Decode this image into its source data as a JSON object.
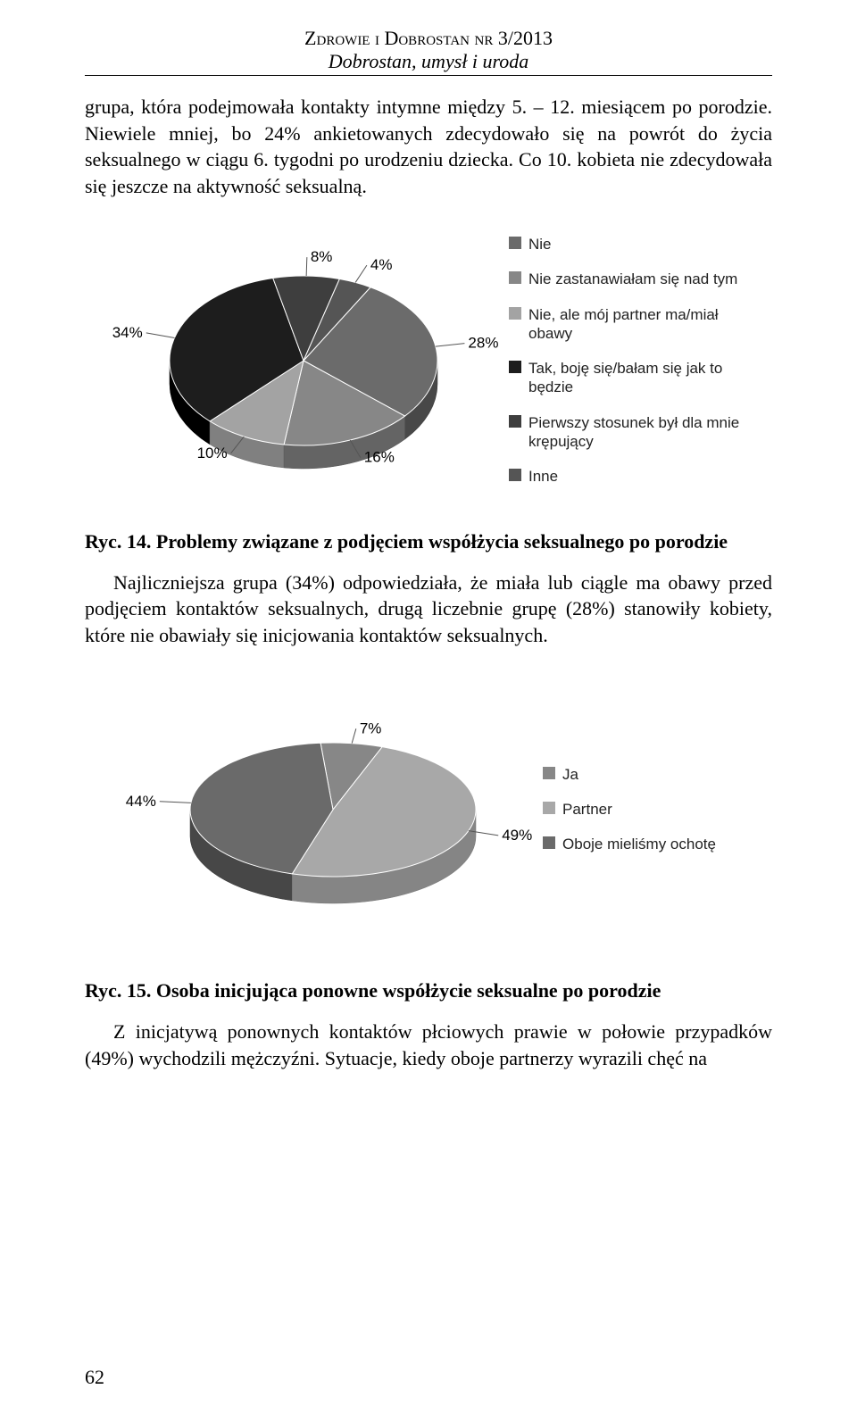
{
  "header": {
    "line1": "Zdrowie i Dobrostan nr 3/2013",
    "line2": "Dobrostan, umysł i uroda"
  },
  "para1": "grupa, która podejmowała kontakty intymne między 5. – 12. miesiącem po porodzie. Niewiele mniej, bo 24% ankietowanych zdecydowało się na powrót do życia seksualnego w ciągu 6. tygodni po urodzeniu dziecka. Co 10. kobieta nie zdecydowała się jeszcze na aktywność seksualną.",
  "chart1": {
    "type": "pie",
    "background_color": "#ffffff",
    "label_fontsize": 17,
    "label_color": "#222222",
    "slices": [
      {
        "label": "Nie",
        "value": 28,
        "color": "#6b6b6b",
        "text": "28%",
        "text_color": "#ffffff"
      },
      {
        "label": "Nie zastanawiałam się nad tym",
        "value": 16,
        "color": "#878787",
        "text": "16%",
        "text_color": "#ffffff"
      },
      {
        "label": "Nie, ale mój partner ma/miał obawy",
        "value": 10,
        "color": "#a3a3a3",
        "text": "10%",
        "text_color": "#000000"
      },
      {
        "label": "Tak, boję się/bałam się jak to będzie",
        "value": 34,
        "color": "#1d1d1d",
        "text": "34%",
        "text_color": "#ffffff"
      },
      {
        "label": "Pierwszy stosunek był dla mnie krępujący",
        "value": 8,
        "color": "#3e3e3e",
        "text": "8%",
        "text_color": "#ffffff"
      },
      {
        "label": "Inne",
        "value": 4,
        "color": "#555555",
        "text": "4%",
        "text_color": "#ffffff"
      }
    ]
  },
  "caption1": "Ryc. 14. Problemy związane z podjęciem współżycia seksualnego po porodzie",
  "para2": "Najliczniejsza grupa (34%) odpowiedziała, że miała lub ciągle ma obawy przed podjęciem kontaktów seksualnych, drugą liczebnie grupę (28%) stanowiły kobiety, które nie obawiały się inicjowania kontaktów seksualnych.",
  "chart2": {
    "type": "pie",
    "background_color": "#ffffff",
    "label_fontsize": 17,
    "label_color": "#222222",
    "slices": [
      {
        "label": "Ja",
        "value": 7,
        "color": "#878787",
        "text": "7%",
        "text_color": "#000000"
      },
      {
        "label": "Partner",
        "value": 49,
        "color": "#a8a8a8",
        "text": "49%",
        "text_color": "#000000"
      },
      {
        "label": "Oboje mieliśmy ochotę",
        "value": 44,
        "color": "#6a6a6a",
        "text": "44%",
        "text_color": "#ffffff"
      }
    ]
  },
  "caption2": "Ryc. 15. Osoba inicjująca ponowne współżycie seksualne po porodzie",
  "para3": "Z  inicjatywą  ponownych  kontaktów  płciowych  prawie  w  połowie  przypadków (49%) wychodzili mężczyźni. Sytuacje, kiedy oboje partnerzy wyrazili chęć na",
  "page_number": "62"
}
